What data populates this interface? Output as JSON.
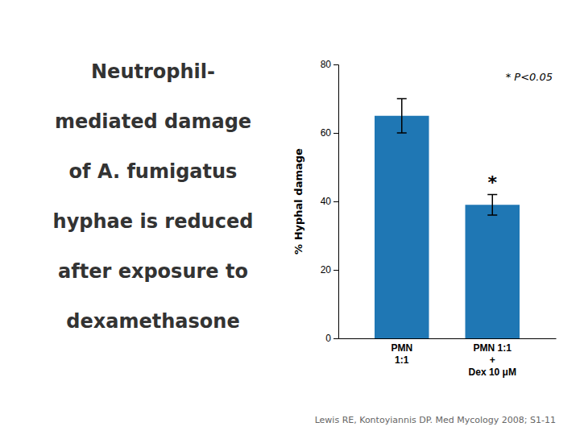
{
  "chart_data": {
    "type": "bar",
    "categories": [
      "PMN\n1:1",
      "PMN 1:1\n+\nDex 10 μM"
    ],
    "values": [
      65,
      39
    ],
    "errors": [
      5,
      3
    ],
    "ylabel": "% Hyphal damage",
    "ylim": [
      0,
      80
    ],
    "yticks": [
      0,
      20,
      40,
      60,
      80
    ],
    "annotations": [
      "*",
      "* P<0.05"
    ],
    "text_lines": [
      "Neutrophil-",
      "mediated damage",
      "of A. fumigatus",
      "hyphae is reduced",
      "after exposure to",
      "dexamethasone"
    ],
    "footer": "Lewis RE, Kontoyiannis DP. Med Mycology 2008; S1-11"
  }
}
